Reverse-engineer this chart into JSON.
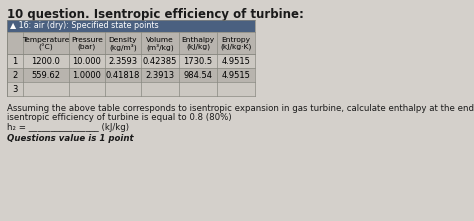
{
  "title": "10 question. Isentropic efficiency of turbine:",
  "table_header_text": "▲ 16: air (dry): Specified state points",
  "col_headers_line1": [
    "Temperature",
    "Pressure",
    "Density",
    "Volume",
    "Enthalpy",
    "Entropy"
  ],
  "col_headers_line2": [
    "(°C)",
    "(bar)",
    "(kg/m³)",
    "(m³/kg)",
    "(kJ/kg)",
    "(kJ/kg·K)"
  ],
  "row_labels": [
    "1",
    "2",
    "3"
  ],
  "row1": [
    "1200.0",
    "10.000",
    "2.3593",
    "0.42385",
    "1730.5",
    "4.9515"
  ],
  "row2": [
    "559.62",
    "1.0000",
    "0.41818",
    "2.3913",
    "984.54",
    "4.9515"
  ],
  "row3": [
    "",
    "",
    "",
    "",
    "",
    ""
  ],
  "body_text1": "Assuming the above table corresponds to isentropic expansion in gas turbine, calculate enthalpy at the end of expansion in (kJ/kg) if",
  "body_text2": "isentropic efficiency of turbine is equal to 0.8 (80%)",
  "formula_label": "h₂ = ",
  "formula_underline": "________________",
  "formula_unit": " (kJ/kg)",
  "footer_text": "Questions value is 1 point",
  "bg_color": "#d4d0cb",
  "table_header_bg": "#4a6080",
  "table_col_header_bg": "#b8b4ae",
  "row1_bg": "#ccc8c2",
  "row2_bg": "#b8b4ae",
  "row3_bg": "#ccc8c2",
  "border_color": "#888880",
  "title_fontsize": 8.5,
  "body_fontsize": 6.2,
  "table_header_fontsize": 5.8,
  "col_header_fontsize": 5.4,
  "data_fontsize": 6.0
}
